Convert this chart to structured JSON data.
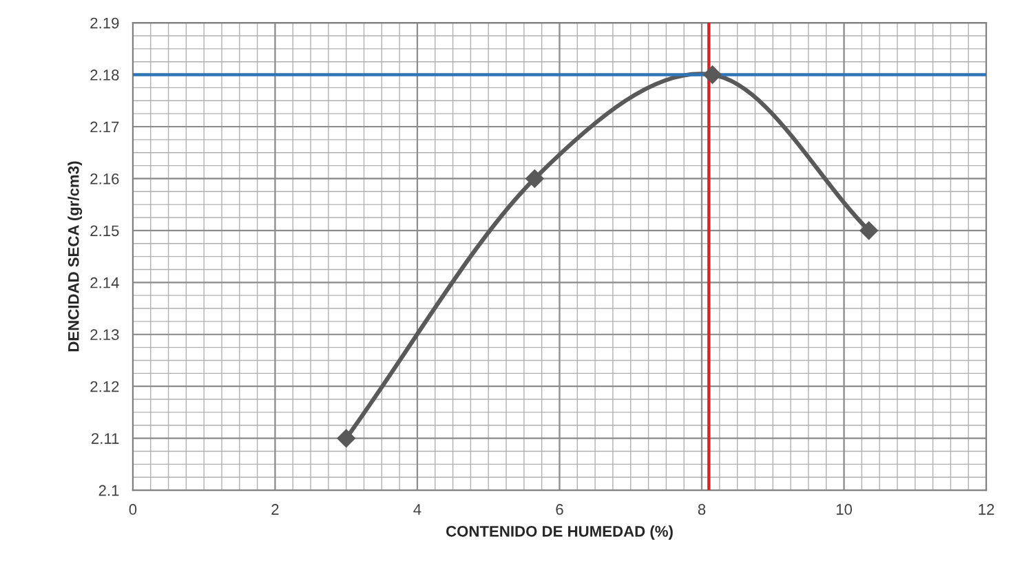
{
  "chart_data": {
    "type": "line",
    "xlabel": "CONTENIDO DE HUMEDAD (%)",
    "ylabel": "DENCIDAD SECA (gr/cm3)",
    "series": [
      {
        "color": "#595959",
        "x": [
          3.0,
          5.65,
          8.15,
          10.35
        ],
        "values": [
          2.11,
          2.16,
          2.18,
          2.15
        ]
      }
    ],
    "xlim": [
      0,
      12
    ],
    "xticks": [
      0,
      2,
      4,
      6,
      8,
      10,
      12
    ],
    "ylim": [
      2.1,
      2.19
    ],
    "yticks": [
      {
        "value": 2.1,
        "label": "2.1"
      },
      2.11,
      2.12,
      2.13,
      2.14,
      2.15,
      2.16,
      2.17,
      2.18,
      2.19
    ],
    "ref_lines": [
      {
        "axis": "y",
        "value": 2.18,
        "color": "#2e75b6"
      },
      {
        "axis": "x",
        "value": 8.1,
        "color": "#e02020"
      }
    ],
    "grid": true,
    "marker": "diamond",
    "line_style": "solid"
  }
}
